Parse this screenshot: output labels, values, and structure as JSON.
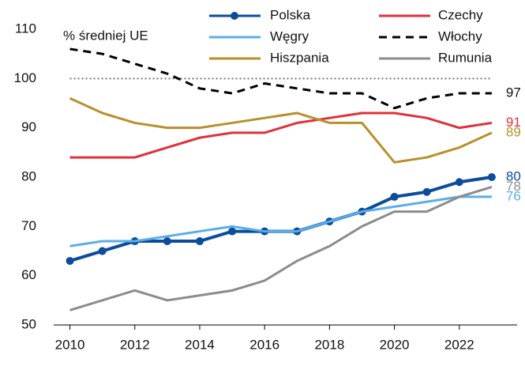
{
  "chart_data": {
    "type": "line",
    "annotation": "% średniej UE",
    "x": [
      2010,
      2011,
      2012,
      2013,
      2014,
      2015,
      2016,
      2017,
      2018,
      2019,
      2020,
      2021,
      2022,
      2023
    ],
    "series": [
      {
        "name": "Polska",
        "color": "#0b4c9c",
        "style": "solid-markers",
        "values": [
          63,
          65,
          67,
          67,
          67,
          69,
          69,
          69,
          71,
          73,
          76,
          77,
          79,
          80
        ]
      },
      {
        "name": "Czechy",
        "color": "#e0303a",
        "style": "solid",
        "values": [
          84,
          84,
          84,
          86,
          88,
          89,
          89,
          91,
          92,
          93,
          93,
          92,
          90,
          91
        ]
      },
      {
        "name": "Węgry",
        "color": "#5aaee8",
        "style": "solid",
        "values": [
          66,
          67,
          67,
          68,
          69,
          70,
          69,
          69,
          71,
          73,
          74,
          75,
          76,
          76
        ]
      },
      {
        "name": "Włochy",
        "color": "#000000",
        "style": "dashed",
        "values": [
          106,
          105,
          103,
          101,
          98,
          97,
          99,
          98,
          97,
          97,
          94,
          96,
          97,
          97
        ]
      },
      {
        "name": "Hiszpania",
        "color": "#b8902a",
        "style": "solid",
        "values": [
          96,
          93,
          91,
          90,
          90,
          91,
          92,
          93,
          91,
          91,
          83,
          84,
          86,
          89
        ]
      },
      {
        "name": "Rumunia",
        "color": "#8c8c8c",
        "style": "solid",
        "values": [
          53,
          55,
          57,
          55,
          56,
          57,
          59,
          63,
          66,
          70,
          73,
          73,
          76,
          78
        ]
      }
    ],
    "reference_line": 100,
    "xlim": [
      2009.5,
      2024
    ],
    "xticks": [
      2010,
      2012,
      2014,
      2016,
      2018,
      2020,
      2022
    ],
    "ylim": [
      50,
      110
    ],
    "yticks": [
      50,
      60,
      70,
      80,
      90,
      100,
      110
    ]
  }
}
